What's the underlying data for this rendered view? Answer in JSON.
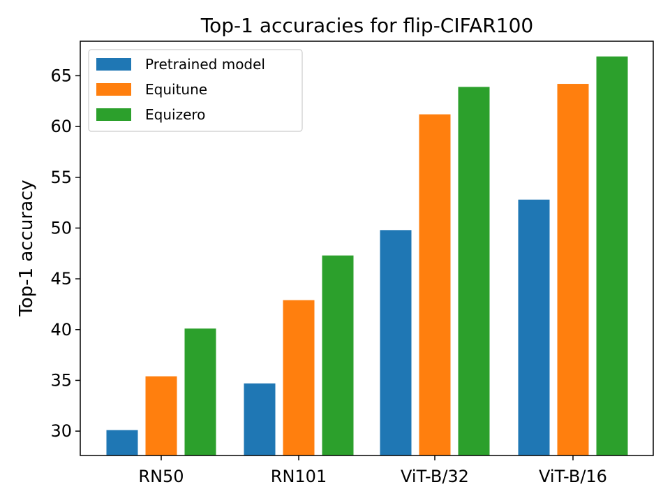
{
  "chart_data": {
    "type": "bar",
    "title": "Top-1 accuracies for flip-CIFAR100",
    "xlabel": "",
    "ylabel": "Top-1 accuracy",
    "categories": [
      "RN50",
      "RN101",
      "ViT-B/32",
      "ViT-B/16"
    ],
    "series": [
      {
        "name": "Pretrained model",
        "color": "#1f77b4",
        "values": [
          30.1,
          34.7,
          49.8,
          52.8
        ]
      },
      {
        "name": "Equitune",
        "color": "#ff7f0e",
        "values": [
          35.4,
          42.9,
          61.2,
          64.2
        ]
      },
      {
        "name": "Equizero",
        "color": "#2ca02c",
        "values": [
          40.1,
          47.3,
          63.9,
          66.9
        ]
      }
    ],
    "ylim": [
      27.6,
      68.4
    ],
    "yticks": [
      30,
      35,
      40,
      45,
      50,
      55,
      60,
      65
    ],
    "legend_position": "top-left",
    "grid": false
  }
}
